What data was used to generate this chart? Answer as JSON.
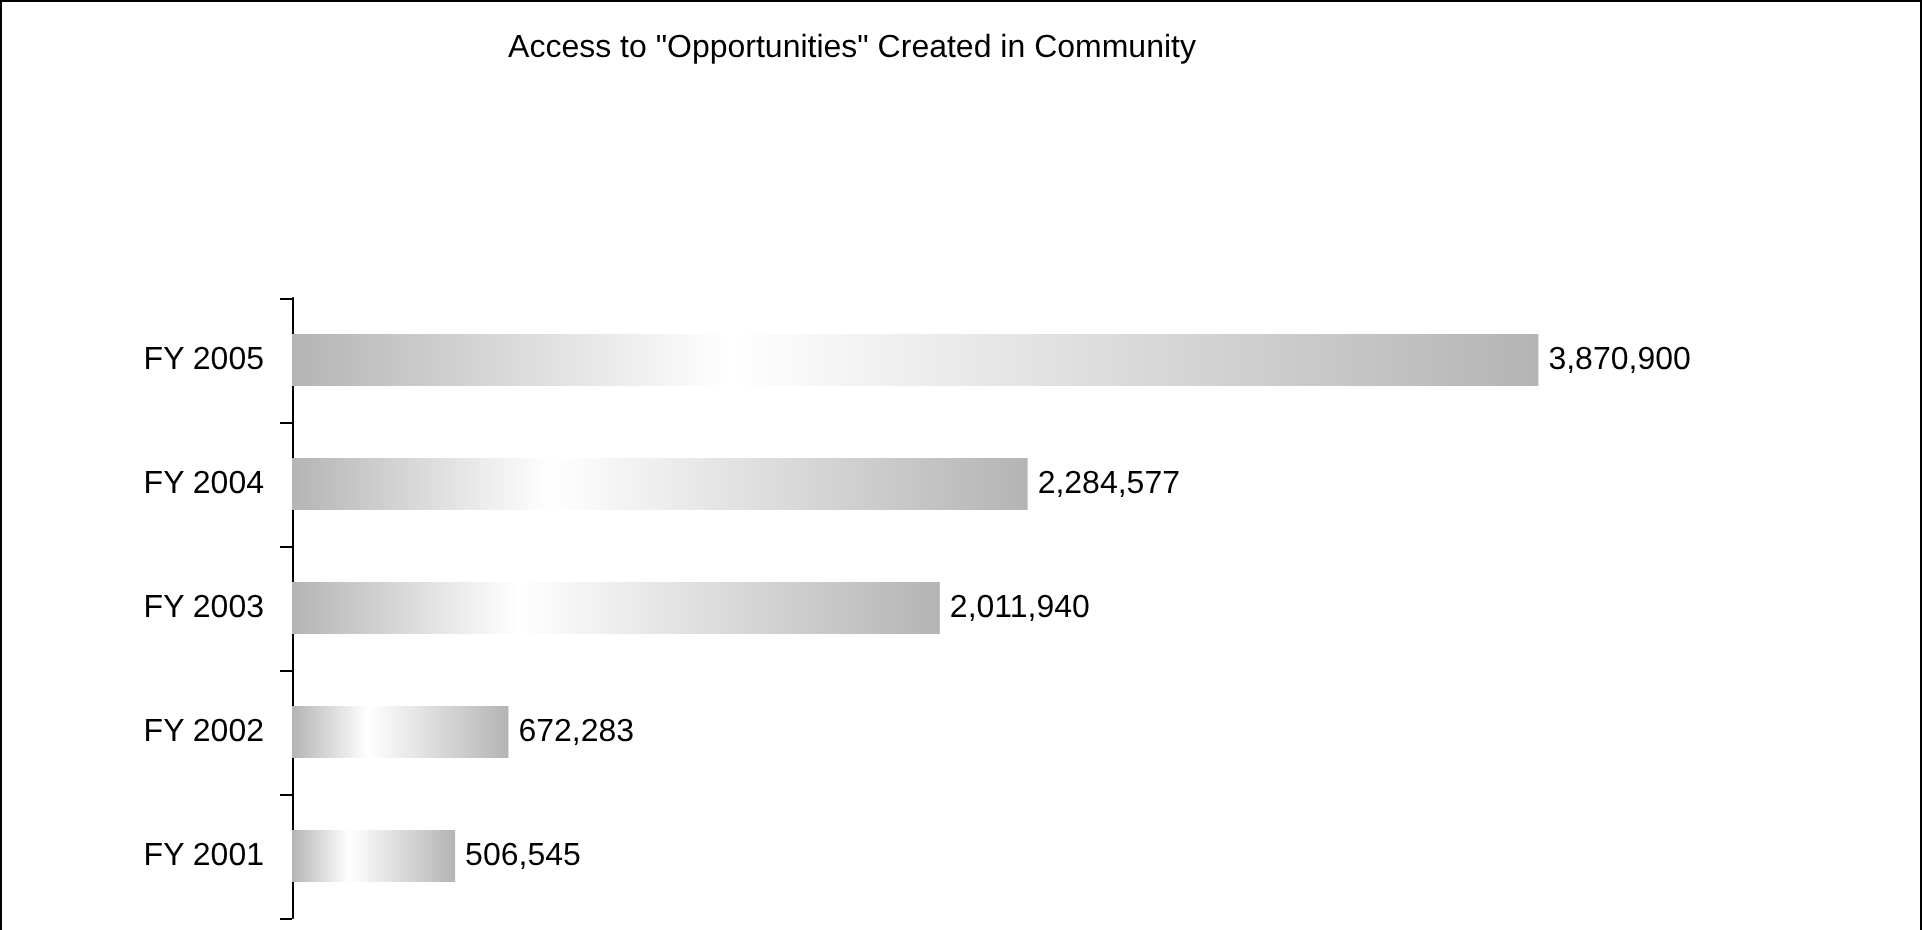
{
  "chart_data": {
    "type": "bar",
    "orientation": "horizontal",
    "title": "Access to \"Opportunities\" Created in Community",
    "categories": [
      "FY 2005",
      "FY 2004",
      "FY 2003",
      "FY 2002",
      "FY 2001"
    ],
    "values": [
      3870900,
      2284577,
      2011940,
      672283,
      506545
    ],
    "value_labels": [
      "3,870,900",
      "2,284,577",
      "2,011,940",
      "672,283",
      "506,545"
    ],
    "color": "#b4b4b4",
    "tick_labels": "y"
  }
}
